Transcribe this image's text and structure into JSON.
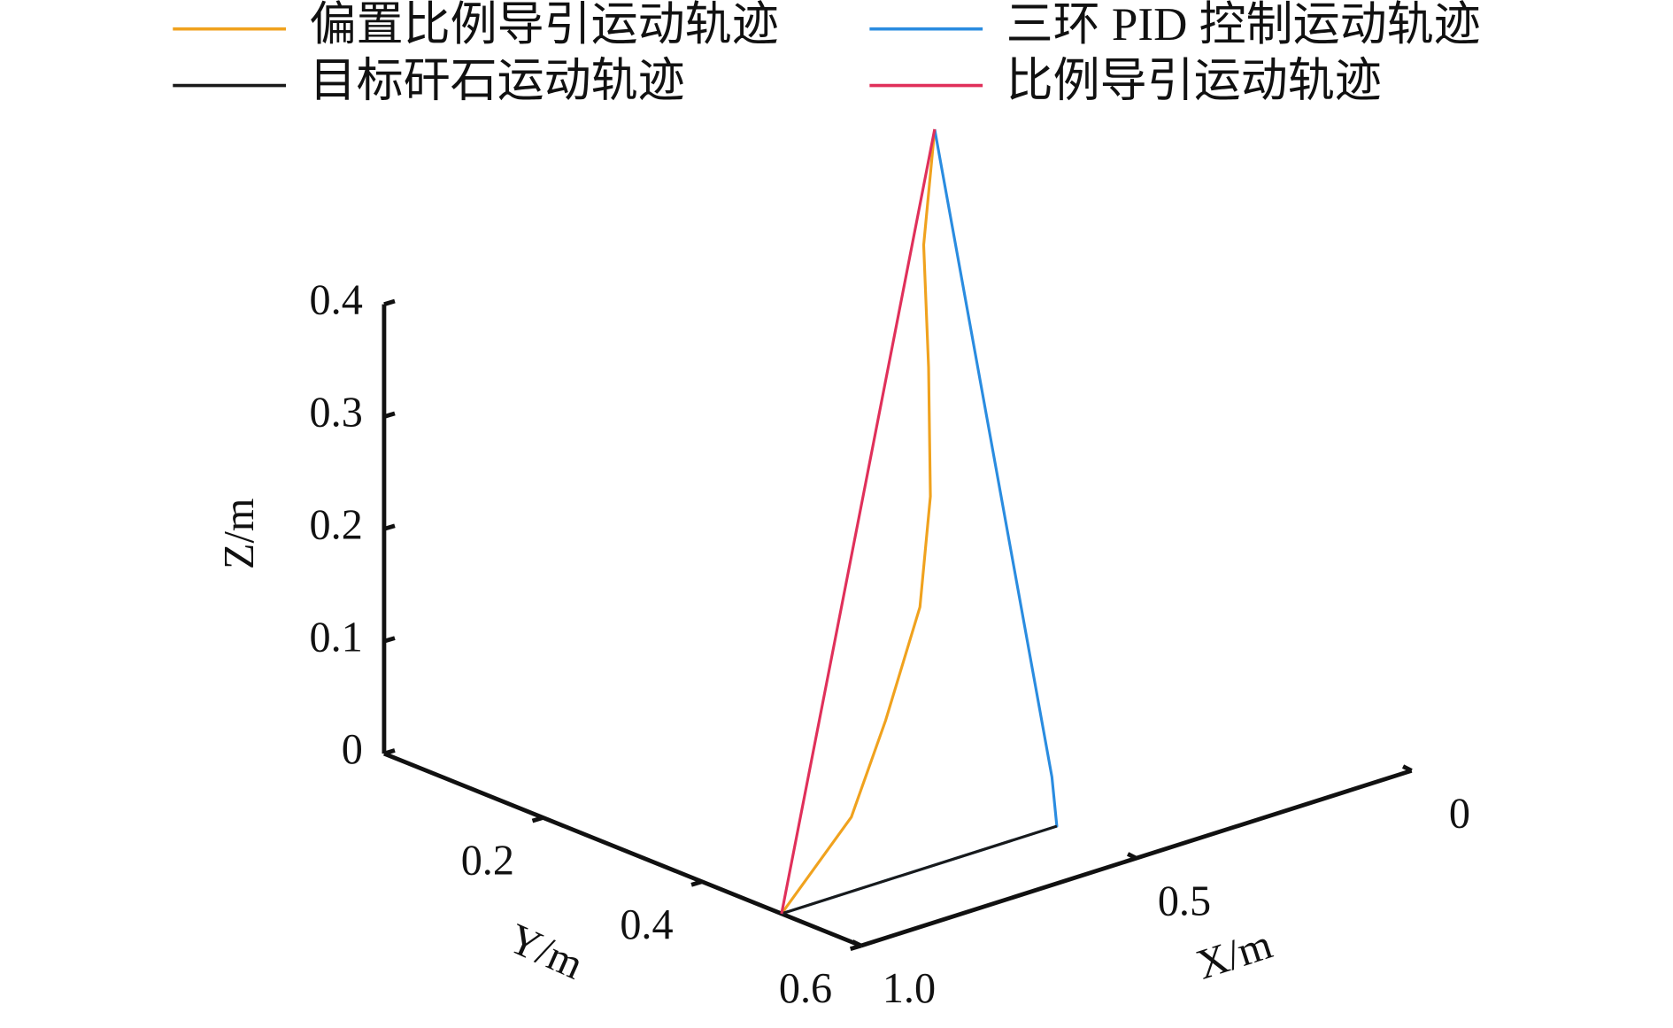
{
  "chart_data": {
    "type": "line3d",
    "xlabel": "X/m",
    "ylabel": "Y/m",
    "zlabel": "Z/m",
    "xlim": [
      0,
      1
    ],
    "ylim": [
      0,
      0.6
    ],
    "zlim": [
      0,
      0.4
    ],
    "xticks": [
      0,
      0.5,
      {
        "value": 1,
        "label": "1.0"
      }
    ],
    "yticks": [
      0.2,
      0.4,
      0.6
    ],
    "zticks": [
      0,
      0.1,
      0.2,
      0.3,
      0.4
    ],
    "series": [
      {
        "name": "偏置比例导引运动轨迹",
        "color": "#f0a21e",
        "x": [
          0,
          0.02,
          0.04,
          0.08,
          0.2,
          0.45,
          0.7,
          1
        ],
        "y": [
          0,
          0,
          0.02,
          0.05,
          0.12,
          0.25,
          0.38,
          0.5
        ],
        "z": [
          0.4,
          0.3,
          0.2,
          0.1,
          0.04,
          0.015,
          0.005,
          0
        ]
      },
      {
        "name": "三环 PID 控制运动轨迹",
        "color": "#2a8ce0",
        "x": [
          0,
          0.48,
          0.5,
          0.75,
          1
        ],
        "y": [
          0,
          0.48,
          0.5,
          0.5,
          0.5
        ],
        "z": [
          0.4,
          0.035,
          0,
          0,
          0
        ]
      },
      {
        "name": "目标矸石运动轨迹",
        "color": "#1a1a1a",
        "x": [
          1,
          0.75,
          0.5
        ],
        "y": [
          0.5,
          0.5,
          0.5
        ],
        "z": [
          0,
          0,
          0
        ]
      },
      {
        "name": "比例导引运动轨迹",
        "color": "#e0305a",
        "x": [
          0,
          0.5,
          1
        ],
        "y": [
          0,
          0.25,
          0.5
        ],
        "z": [
          0.4,
          0.2,
          0
        ]
      }
    ]
  }
}
